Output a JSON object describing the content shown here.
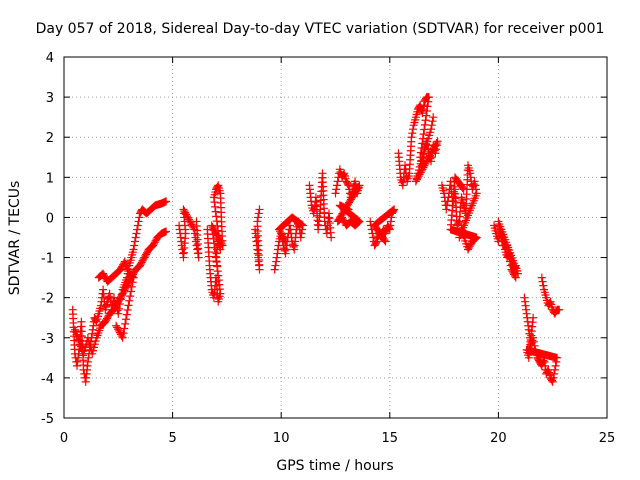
{
  "chart_data": {
    "type": "scatter",
    "title": "Day 057 of 2018, Sidereal Day-to-day VTEC variation (SDTVAR) for receiver p001",
    "xlabel": "GPS time / hours",
    "ylabel": "SDTVAR / TECUs",
    "xlim": [
      0,
      25
    ],
    "ylim": [
      -5,
      4
    ],
    "xticks": [
      "0",
      "5",
      "10",
      "15",
      "20",
      "25"
    ],
    "yticks": [
      "-5",
      "-4",
      "-3",
      "-2",
      "-1",
      "0",
      "1",
      "2",
      "3",
      "4"
    ],
    "grid": true,
    "marker": "plus",
    "series": [
      {
        "name": "SDTVAR",
        "color": "#ff0000",
        "segments": [
          [
            [
              0.4,
              -2.3
            ],
            [
              0.5,
              -3.4
            ],
            [
              0.6,
              -3.7
            ],
            [
              0.7,
              -3.3
            ],
            [
              0.8,
              -2.6
            ],
            [
              0.9,
              -3.8
            ],
            [
              1.0,
              -4.1
            ],
            [
              1.1,
              -3.6
            ],
            [
              1.2,
              -3.2
            ],
            [
              1.3,
              -2.9
            ],
            [
              1.4,
              -2.5
            ],
            [
              1.5,
              -2.6
            ],
            [
              1.6,
              -2.4
            ],
            [
              1.7,
              -2.2
            ],
            [
              1.8,
              -1.8
            ],
            [
              1.9,
              -2.3
            ],
            [
              2.0,
              -2.1
            ],
            [
              2.1,
              -1.9
            ],
            [
              2.2,
              -2.3
            ],
            [
              2.3,
              -2.0
            ],
            [
              2.5,
              -2.4
            ],
            [
              2.7,
              -1.8
            ],
            [
              2.9,
              -1.5
            ],
            [
              3.0,
              -1.2
            ],
            [
              3.1,
              -1.0
            ],
            [
              3.2,
              -0.8
            ],
            [
              3.3,
              -0.5
            ],
            [
              3.4,
              -0.2
            ],
            [
              3.5,
              0.1
            ],
            [
              3.6,
              0.2
            ],
            [
              3.8,
              0.1
            ],
            [
              4.0,
              0.2
            ],
            [
              4.2,
              0.3
            ],
            [
              4.5,
              0.35
            ],
            [
              4.7,
              0.4
            ]
          ],
          [
            [
              0.5,
              -2.8
            ],
            [
              0.7,
              -3.1
            ],
            [
              0.9,
              -3.4
            ],
            [
              1.1,
              -3.0
            ],
            [
              1.3,
              -3.4
            ],
            [
              1.5,
              -3.0
            ],
            [
              1.7,
              -2.7
            ],
            [
              1.9,
              -2.6
            ],
            [
              2.1,
              -2.4
            ],
            [
              2.3,
              -2.3
            ],
            [
              2.5,
              -2.1
            ],
            [
              2.7,
              -1.9
            ],
            [
              2.9,
              -1.7
            ],
            [
              3.1,
              -1.5
            ],
            [
              3.3,
              -1.3
            ],
            [
              3.5,
              -1.2
            ],
            [
              3.7,
              -1.0
            ],
            [
              3.9,
              -0.8
            ],
            [
              4.1,
              -0.7
            ],
            [
              4.3,
              -0.5
            ],
            [
              4.5,
              -0.4
            ],
            [
              4.7,
              -0.35
            ]
          ],
          [
            [
              1.6,
              -1.5
            ],
            [
              1.8,
              -1.4
            ],
            [
              2.0,
              -1.6
            ],
            [
              2.6,
              -1.3
            ],
            [
              2.8,
              -1.1
            ],
            [
              3.0,
              -1.4
            ],
            [
              3.2,
              -1.5
            ],
            [
              2.7,
              -3.0
            ],
            [
              2.4,
              -2.7
            ]
          ],
          [
            [
              5.3,
              -0.2
            ],
            [
              5.4,
              -0.6
            ],
            [
              5.5,
              -1.0
            ],
            [
              5.6,
              -0.4
            ],
            [
              5.5,
              0.2
            ],
            [
              6.0,
              -0.3
            ],
            [
              6.1,
              -0.7
            ],
            [
              6.2,
              -1.0
            ],
            [
              6.1,
              -0.1
            ]
          ],
          [
            [
              6.6,
              -0.3
            ],
            [
              6.7,
              -1.2
            ],
            [
              6.8,
              -1.8
            ],
            [
              6.9,
              -2.0
            ],
            [
              7.0,
              -1.5
            ],
            [
              7.1,
              -2.1
            ],
            [
              7.2,
              -1.9
            ],
            [
              7.0,
              -1.0
            ],
            [
              7.1,
              -0.6
            ],
            [
              7.2,
              -0.8
            ],
            [
              6.9,
              0.5
            ],
            [
              7.0,
              0.7
            ],
            [
              7.1,
              0.8
            ],
            [
              7.2,
              0.6
            ],
            [
              7.3,
              -0.7
            ],
            [
              6.8,
              -0.2
            ],
            [
              7.05,
              -1.2
            ]
          ],
          [
            [
              8.8,
              -0.3
            ],
            [
              8.9,
              -0.8
            ],
            [
              9.0,
              -1.3
            ],
            [
              8.9,
              -0.1
            ],
            [
              9.0,
              0.2
            ]
          ],
          [
            [
              9.7,
              -1.3
            ],
            [
              9.8,
              -1.0
            ],
            [
              9.9,
              -0.6
            ],
            [
              10.0,
              -0.4
            ],
            [
              10.1,
              -0.7
            ],
            [
              10.2,
              -0.9
            ],
            [
              10.3,
              -0.5
            ],
            [
              10.4,
              -0.2
            ],
            [
              10.5,
              -0.6
            ],
            [
              10.6,
              -0.8
            ],
            [
              10.7,
              -0.3
            ],
            [
              10.8,
              -0.1
            ],
            [
              10.9,
              -0.5
            ],
            [
              11.0,
              -0.2
            ],
            [
              10.5,
              0.0
            ],
            [
              9.9,
              -0.3
            ],
            [
              10.2,
              -0.6
            ]
          ],
          [
            [
              11.3,
              0.8
            ],
            [
              11.4,
              0.3
            ],
            [
              11.5,
              0.1
            ],
            [
              11.6,
              0.5
            ],
            [
              11.7,
              -0.3
            ],
            [
              11.8,
              0.2
            ],
            [
              11.9,
              1.1
            ],
            [
              12.0,
              -0.1
            ],
            [
              12.1,
              -0.4
            ],
            [
              12.2,
              0.1
            ],
            [
              12.3,
              -0.5
            ]
          ],
          [
            [
              12.5,
              0.6
            ],
            [
              12.6,
              0.9
            ],
            [
              12.7,
              1.2
            ],
            [
              12.8,
              1.0
            ],
            [
              12.9,
              1.1
            ],
            [
              13.0,
              0.9
            ],
            [
              13.1,
              0.8
            ],
            [
              13.2,
              0.5
            ],
            [
              13.3,
              0.7
            ],
            [
              13.4,
              0.9
            ],
            [
              13.5,
              0.6
            ],
            [
              13.6,
              0.8
            ],
            [
              12.6,
              -0.1
            ],
            [
              12.8,
              0.0
            ],
            [
              13.0,
              -0.2
            ],
            [
              13.2,
              -0.1
            ],
            [
              13.4,
              -0.2
            ],
            [
              13.6,
              -0.1
            ],
            [
              12.7,
              0.3
            ],
            [
              13.1,
              0.2
            ]
          ],
          [
            [
              14.1,
              -0.1
            ],
            [
              14.2,
              -0.4
            ],
            [
              14.3,
              -0.7
            ],
            [
              14.4,
              -0.6
            ],
            [
              14.5,
              -0.4
            ],
            [
              14.6,
              -0.5
            ],
            [
              14.7,
              -0.3
            ],
            [
              14.8,
              -0.4
            ],
            [
              14.9,
              -0.2
            ],
            [
              15.0,
              -0.3
            ],
            [
              15.1,
              0.1
            ],
            [
              15.2,
              0.2
            ],
            [
              14.5,
              -0.1
            ],
            [
              14.3,
              -0.2
            ],
            [
              14.8,
              -0.6
            ]
          ],
          [
            [
              15.4,
              1.6
            ],
            [
              15.5,
              1.0
            ],
            [
              15.6,
              0.8
            ],
            [
              15.7,
              1.3
            ],
            [
              15.8,
              0.9
            ],
            [
              15.9,
              1.1
            ],
            [
              16.0,
              2.0
            ],
            [
              16.1,
              2.3
            ],
            [
              16.2,
              2.5
            ],
            [
              16.3,
              2.7
            ],
            [
              16.4,
              2.8
            ],
            [
              16.5,
              2.6
            ],
            [
              16.6,
              2.9
            ],
            [
              16.7,
              3.0
            ],
            [
              16.8,
              3.0
            ],
            [
              16.4,
              1.5
            ],
            [
              16.5,
              1.2
            ],
            [
              16.6,
              1.7
            ],
            [
              16.7,
              1.9
            ],
            [
              16.8,
              1.6
            ],
            [
              16.9,
              1.4
            ],
            [
              17.0,
              1.8
            ],
            [
              17.1,
              1.6
            ],
            [
              17.2,
              1.9
            ],
            [
              16.2,
              0.9
            ],
            [
              16.3,
              1.1
            ],
            [
              16.5,
              1.5
            ],
            [
              16.9,
              2.2
            ],
            [
              17.0,
              2.5
            ]
          ],
          [
            [
              17.4,
              0.8
            ],
            [
              17.5,
              0.6
            ],
            [
              17.6,
              0.2
            ],
            [
              17.7,
              0.5
            ],
            [
              17.8,
              0.9
            ],
            [
              17.9,
              0.3
            ],
            [
              18.0,
              0.7
            ],
            [
              18.1,
              -0.2
            ],
            [
              18.2,
              -0.1
            ],
            [
              18.3,
              0.5
            ],
            [
              18.4,
              0.3
            ],
            [
              18.5,
              0.1
            ],
            [
              18.6,
              1.3
            ],
            [
              18.7,
              1.1
            ],
            [
              18.8,
              0.7
            ],
            [
              18.9,
              0.9
            ],
            [
              19.0,
              0.6
            ],
            [
              18.2,
              -0.5
            ],
            [
              18.3,
              -0.3
            ],
            [
              18.6,
              -0.8
            ],
            [
              18.8,
              -0.6
            ],
            [
              19.0,
              -0.5
            ],
            [
              17.8,
              -0.3
            ],
            [
              18.0,
              1.0
            ],
            [
              18.4,
              0.7
            ]
          ],
          [
            [
              19.8,
              -0.2
            ],
            [
              19.9,
              -0.4
            ],
            [
              20.0,
              -0.6
            ],
            [
              20.1,
              -0.3
            ],
            [
              20.2,
              -0.5
            ],
            [
              20.3,
              -0.8
            ],
            [
              20.4,
              -1.0
            ],
            [
              20.5,
              -0.9
            ],
            [
              20.6,
              -1.1
            ],
            [
              20.7,
              -1.3
            ],
            [
              20.8,
              -1.2
            ],
            [
              20.9,
              -1.4
            ],
            [
              20.0,
              -0.1
            ],
            [
              20.2,
              -0.7
            ],
            [
              20.4,
              -0.7
            ],
            [
              20.6,
              -1.3
            ],
            [
              20.8,
              -1.5
            ]
          ],
          [
            [
              21.2,
              -2.0
            ],
            [
              21.3,
              -2.4
            ],
            [
              21.4,
              -2.8
            ],
            [
              21.5,
              -3.2
            ],
            [
              21.6,
              -3.0
            ],
            [
              21.7,
              -3.3
            ],
            [
              21.8,
              -3.5
            ],
            [
              21.9,
              -3.6
            ],
            [
              22.0,
              -3.7
            ],
            [
              22.1,
              -3.5
            ],
            [
              22.2,
              -3.9
            ],
            [
              22.3,
              -3.8
            ],
            [
              22.4,
              -4.0
            ],
            [
              22.5,
              -4.1
            ],
            [
              22.6,
              -3.8
            ],
            [
              22.7,
              -3.5
            ],
            [
              21.3,
              -3.3
            ],
            [
              21.4,
              -3.5
            ],
            [
              21.6,
              -2.5
            ]
          ],
          [
            [
              22.0,
              -1.5
            ],
            [
              22.1,
              -1.8
            ],
            [
              22.2,
              -2.0
            ],
            [
              22.3,
              -2.2
            ],
            [
              22.4,
              -2.1
            ],
            [
              22.5,
              -2.3
            ],
            [
              22.6,
              -2.4
            ],
            [
              22.7,
              -2.3
            ],
            [
              22.8,
              -2.3
            ]
          ]
        ]
      }
    ]
  }
}
